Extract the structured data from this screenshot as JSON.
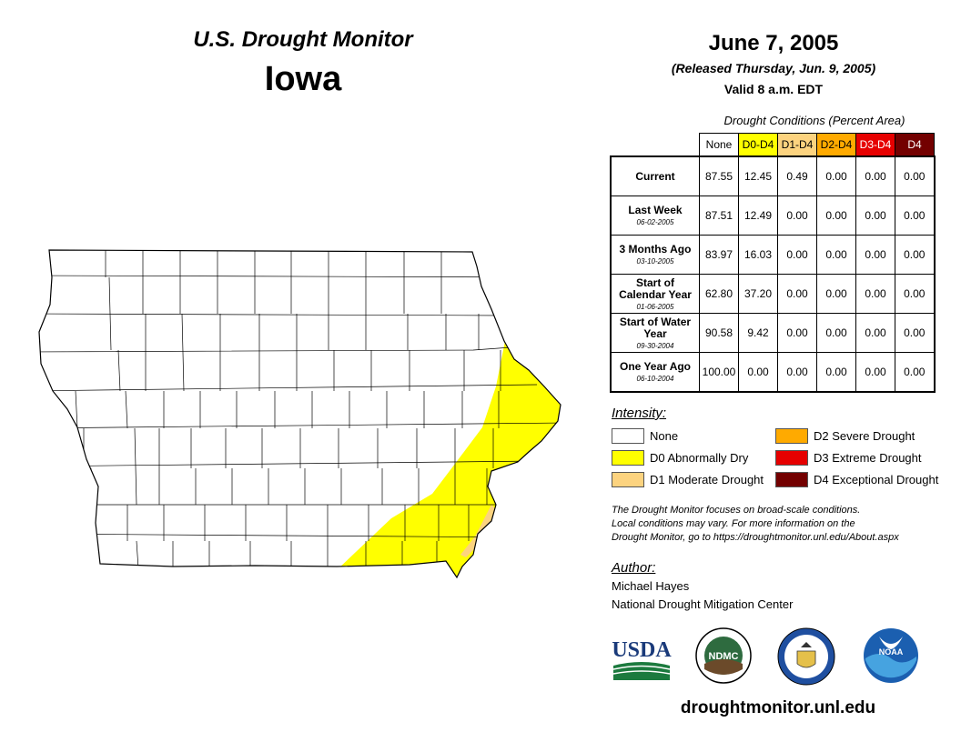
{
  "header": {
    "title": "U.S. Drought Monitor",
    "state": "Iowa",
    "date": "June 7, 2005",
    "released": "(Released Thursday, Jun. 9, 2005)",
    "valid": "Valid 8 a.m. EDT"
  },
  "table": {
    "caption": "Drought Conditions (Percent Area)",
    "columns": [
      {
        "label": "None",
        "bg": "#ffffff",
        "fg": "#000000"
      },
      {
        "label": "D0-D4",
        "bg": "#ffff00",
        "fg": "#000000"
      },
      {
        "label": "D1-D4",
        "bg": "#fcd37f",
        "fg": "#000000"
      },
      {
        "label": "D2-D4",
        "bg": "#ffaa00",
        "fg": "#000000"
      },
      {
        "label": "D3-D4",
        "bg": "#e60000",
        "fg": "#ffffff"
      },
      {
        "label": "D4",
        "bg": "#730000",
        "fg": "#ffffff"
      }
    ],
    "rows": [
      {
        "label": "Current",
        "sub": "",
        "values": [
          "87.55",
          "12.45",
          "0.49",
          "0.00",
          "0.00",
          "0.00"
        ]
      },
      {
        "label": "Last Week",
        "sub": "06-02-2005",
        "values": [
          "87.51",
          "12.49",
          "0.00",
          "0.00",
          "0.00",
          "0.00"
        ]
      },
      {
        "label": "3 Months Ago",
        "sub": "03-10-2005",
        "values": [
          "83.97",
          "16.03",
          "0.00",
          "0.00",
          "0.00",
          "0.00"
        ]
      },
      {
        "label": "Start of Calendar Year",
        "sub": "01-06-2005",
        "values": [
          "62.80",
          "37.20",
          "0.00",
          "0.00",
          "0.00",
          "0.00"
        ]
      },
      {
        "label": "Start of Water Year",
        "sub": "09-30-2004",
        "values": [
          "90.58",
          "9.42",
          "0.00",
          "0.00",
          "0.00",
          "0.00"
        ]
      },
      {
        "label": "One Year Ago",
        "sub": "06-10-2004",
        "values": [
          "100.00",
          "0.00",
          "0.00",
          "0.00",
          "0.00",
          "0.00"
        ]
      }
    ]
  },
  "legend": {
    "title": "Intensity:",
    "items": [
      {
        "label": "None",
        "color": "#ffffff"
      },
      {
        "label": "D0 Abnormally Dry",
        "color": "#ffff00"
      },
      {
        "label": "D1 Moderate Drought",
        "color": "#fcd37f"
      },
      {
        "label": "D2 Severe Drought",
        "color": "#ffaa00"
      },
      {
        "label": "D3 Extreme Drought",
        "color": "#e60000"
      },
      {
        "label": "D4 Exceptional Drought",
        "color": "#730000"
      }
    ]
  },
  "note": {
    "line1": "The Drought Monitor focuses on broad-scale conditions.",
    "line2": "Local conditions may vary. For more information on the",
    "line3": "Drought Monitor, go to https://droughtmonitor.unl.edu/About.aspx"
  },
  "author": {
    "title": "Author:",
    "name": "Michael Hayes",
    "org": "National Drought Mitigation Center"
  },
  "logos": {
    "usda": "USDA",
    "ndmc": "NDMC",
    "noaa": "NOAA"
  },
  "footer": {
    "site": "droughtmonitor.unl.edu"
  }
}
